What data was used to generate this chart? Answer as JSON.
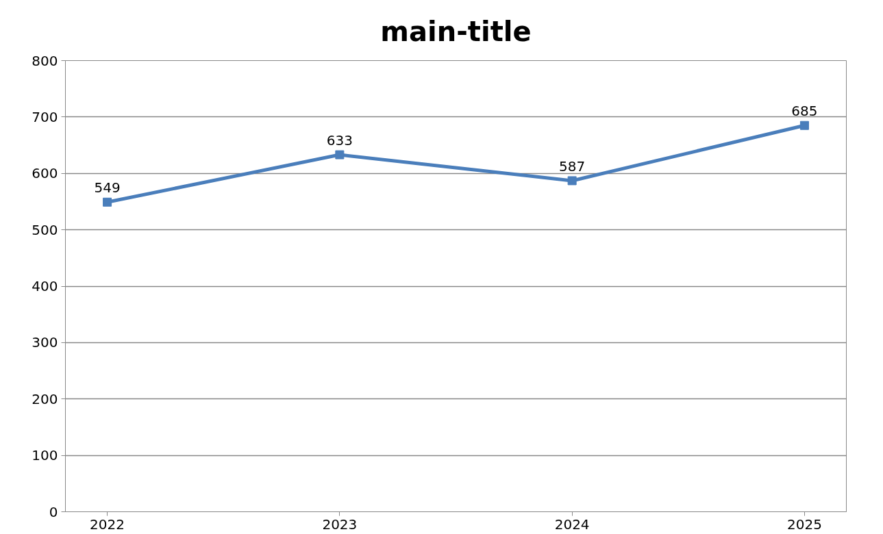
{
  "chart_data": {
    "type": "line",
    "title": "main-title",
    "categories": [
      "2022",
      "2023",
      "2024",
      "2025"
    ],
    "series": [
      {
        "color": "#4a7ebb",
        "values": [
          549,
          633,
          587,
          685
        ]
      }
    ],
    "ylim": [
      0,
      800
    ],
    "yticks": [
      0,
      100,
      200,
      300,
      400,
      500,
      600,
      700,
      800
    ],
    "grid": "y",
    "marker": "square",
    "line_style": "solid",
    "data_labels": true
  }
}
